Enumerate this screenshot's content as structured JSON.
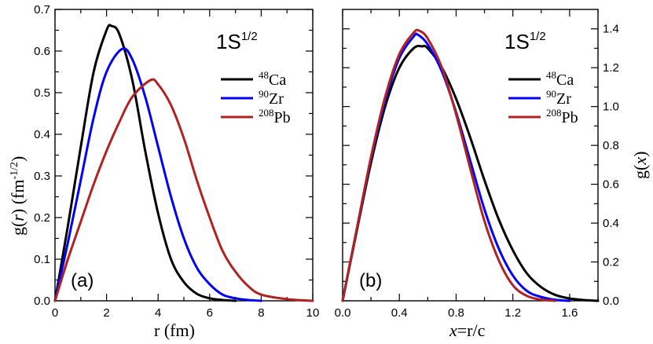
{
  "chart_data": [
    {
      "type": "line",
      "panel_label": "(a)",
      "state": {
        "main": "1S",
        "sup": "1/2"
      },
      "xlabel": {
        "main": "r",
        "rest": " (fm)"
      },
      "ylabel": {
        "func": "g(",
        "var": "r",
        "close": ")",
        "unit": " (fm",
        "unit_sup": "-1/2",
        "unit_close": ")"
      },
      "xlim": [
        0,
        10
      ],
      "ylim": [
        0,
        0.7
      ],
      "xticks": [
        "0",
        "2",
        "4",
        "6",
        "8",
        "10"
      ],
      "yticks": [
        "0.0",
        "0.1",
        "0.2",
        "0.3",
        "0.4",
        "0.5",
        "0.6",
        "0.7"
      ],
      "series": [
        {
          "name": "Ca",
          "mass": "48",
          "color": "#000000",
          "x": [
            0,
            0.5,
            1,
            1.5,
            2,
            2.2,
            2.5,
            3,
            3.5,
            4,
            4.5,
            5,
            5.5,
            6,
            6.5,
            7
          ],
          "y": [
            0,
            0.18,
            0.37,
            0.55,
            0.65,
            0.66,
            0.64,
            0.53,
            0.36,
            0.21,
            0.1,
            0.045,
            0.017,
            0.006,
            0.002,
            0
          ]
        },
        {
          "name": "Zr",
          "mass": "90",
          "color": "#0000ff",
          "x": [
            0,
            0.5,
            1,
            1.5,
            2,
            2.6,
            3,
            3.5,
            4,
            4.5,
            5,
            5.5,
            6,
            6.5,
            7,
            7.5,
            8
          ],
          "y": [
            0,
            0.14,
            0.29,
            0.44,
            0.55,
            0.605,
            0.58,
            0.49,
            0.37,
            0.25,
            0.15,
            0.08,
            0.04,
            0.015,
            0.006,
            0.002,
            0
          ]
        },
        {
          "name": "Pb",
          "mass": "208",
          "color": "#b22222",
          "x": [
            0,
            0.5,
            1,
            1.5,
            2,
            2.5,
            3,
            3.7,
            4,
            4.5,
            5,
            5.5,
            6,
            6.5,
            7,
            7.5,
            8,
            9,
            10
          ],
          "y": [
            0,
            0.1,
            0.19,
            0.28,
            0.36,
            0.43,
            0.49,
            0.53,
            0.52,
            0.47,
            0.39,
            0.29,
            0.2,
            0.12,
            0.07,
            0.035,
            0.015,
            0.004,
            0
          ]
        }
      ]
    },
    {
      "type": "line",
      "panel_label": "(b)",
      "state": {
        "main": "1S",
        "sup": "1/2"
      },
      "xlabel": {
        "main": "x",
        "rest": "=r/c"
      },
      "ylabel": {
        "func": "g(",
        "var": "x",
        "close": ")"
      },
      "xlim": [
        0,
        1.8
      ],
      "ylim": [
        0,
        1.5
      ],
      "xticks": [
        "0.0",
        "0.4",
        "0.8",
        "1.2",
        "1.6"
      ],
      "yticks": [
        "0.0",
        "0.2",
        "0.4",
        "0.6",
        "0.8",
        "1.0",
        "1.2",
        "1.4"
      ],
      "series": [
        {
          "name": "Ca",
          "mass": "48",
          "color": "#000000",
          "x": [
            0,
            0.1,
            0.2,
            0.3,
            0.4,
            0.5,
            0.56,
            0.6,
            0.7,
            0.8,
            0.9,
            1.0,
            1.1,
            1.2,
            1.3,
            1.4,
            1.5,
            1.6,
            1.7,
            1.8
          ],
          "y": [
            0,
            0.36,
            0.71,
            1.0,
            1.2,
            1.3,
            1.31,
            1.3,
            1.2,
            1.04,
            0.84,
            0.62,
            0.42,
            0.26,
            0.14,
            0.07,
            0.03,
            0.012,
            0.004,
            0
          ]
        },
        {
          "name": "Zr",
          "mass": "90",
          "color": "#0000ff",
          "x": [
            0,
            0.1,
            0.2,
            0.3,
            0.4,
            0.5,
            0.53,
            0.6,
            0.7,
            0.8,
            0.9,
            1.0,
            1.1,
            1.2,
            1.3,
            1.4,
            1.5,
            1.6
          ],
          "y": [
            0,
            0.37,
            0.73,
            1.03,
            1.25,
            1.36,
            1.37,
            1.32,
            1.18,
            0.97,
            0.72,
            0.47,
            0.27,
            0.13,
            0.05,
            0.02,
            0.005,
            0
          ]
        },
        {
          "name": "Pb",
          "mass": "208",
          "color": "#b22222",
          "x": [
            0,
            0.1,
            0.2,
            0.3,
            0.4,
            0.5,
            0.54,
            0.6,
            0.7,
            0.8,
            0.9,
            1.0,
            1.1,
            1.2,
            1.3,
            1.4,
            1.5
          ],
          "y": [
            0,
            0.37,
            0.74,
            1.05,
            1.27,
            1.38,
            1.39,
            1.35,
            1.2,
            0.96,
            0.68,
            0.41,
            0.21,
            0.08,
            0.025,
            0.006,
            0
          ]
        }
      ]
    }
  ]
}
